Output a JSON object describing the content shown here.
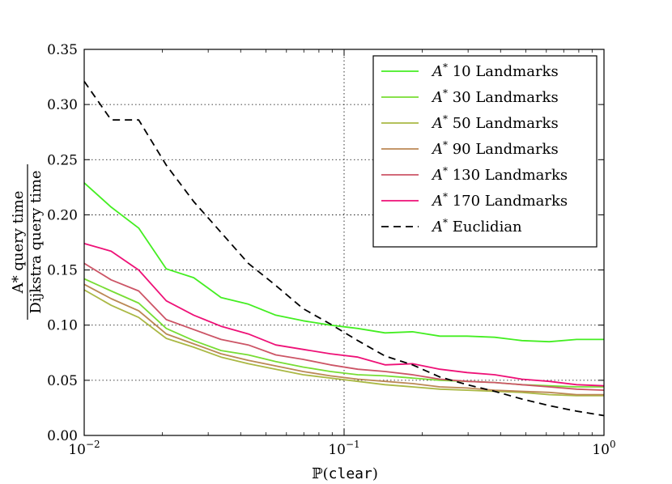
{
  "chart_data": {
    "type": "line",
    "xscale": "log",
    "xlim": [
      0.01,
      1
    ],
    "ylim": [
      0,
      0.35
    ],
    "grid": true,
    "legend_position": "top-right",
    "xlabel": {
      "prefix": "ℙ(",
      "mono": "clear",
      "suffix": ")"
    },
    "ylabel": {
      "numerator": "A* query time",
      "denominator": "Dijkstra query time"
    },
    "y_ticks": [
      "0.00",
      "0.05",
      "0.10",
      "0.15",
      "0.20",
      "0.25",
      "0.30",
      "0.35"
    ],
    "x_ticks": [
      {
        "base": "10",
        "exp": "−2"
      },
      {
        "base": "10",
        "exp": "−1"
      },
      {
        "base": "10",
        "exp": "0"
      }
    ],
    "x": [
      0.01,
      0.0127,
      0.0162,
      0.0207,
      0.0264,
      0.0336,
      0.0428,
      0.0546,
      0.0695,
      0.0886,
      0.1129,
      0.1438,
      0.1833,
      0.2336,
      0.2976,
      0.3793,
      0.4833,
      0.6158,
      0.7848,
      1.0
    ],
    "series": [
      {
        "name": "A* 10 Landmarks",
        "color": "#44ee22",
        "dash": "solid",
        "values": [
          0.229,
          0.207,
          0.188,
          0.151,
          0.143,
          0.125,
          0.119,
          0.109,
          0.104,
          0.1,
          0.097,
          0.093,
          0.094,
          0.09,
          0.09,
          0.089,
          0.086,
          0.085,
          0.087,
          0.087
        ]
      },
      {
        "name": "A* 30 Landmarks",
        "color": "#77dd33",
        "dash": "solid",
        "values": [
          0.142,
          0.131,
          0.12,
          0.097,
          0.086,
          0.077,
          0.073,
          0.067,
          0.062,
          0.058,
          0.055,
          0.054,
          0.052,
          0.05,
          0.049,
          0.048,
          0.046,
          0.045,
          0.044,
          0.044
        ]
      },
      {
        "name": "A* 50 Landmarks",
        "color": "#aab844",
        "dash": "solid",
        "values": [
          0.132,
          0.118,
          0.107,
          0.088,
          0.08,
          0.071,
          0.065,
          0.06,
          0.055,
          0.052,
          0.049,
          0.046,
          0.044,
          0.042,
          0.041,
          0.04,
          0.039,
          0.037,
          0.036,
          0.036
        ]
      },
      {
        "name": "A* 90 Landmarks",
        "color": "#bb8855",
        "dash": "solid",
        "values": [
          0.137,
          0.124,
          0.113,
          0.092,
          0.083,
          0.074,
          0.068,
          0.063,
          0.058,
          0.054,
          0.051,
          0.049,
          0.047,
          0.044,
          0.043,
          0.041,
          0.04,
          0.039,
          0.037,
          0.037
        ]
      },
      {
        "name": "A* 130 Landmarks",
        "color": "#cc5566",
        "dash": "solid",
        "values": [
          0.156,
          0.141,
          0.131,
          0.105,
          0.096,
          0.087,
          0.082,
          0.073,
          0.069,
          0.064,
          0.06,
          0.058,
          0.055,
          0.051,
          0.049,
          0.048,
          0.046,
          0.044,
          0.042,
          0.041
        ]
      },
      {
        "name": "A* 170 Landmarks",
        "color": "#ee1177",
        "dash": "solid",
        "values": [
          0.174,
          0.167,
          0.15,
          0.122,
          0.109,
          0.099,
          0.092,
          0.082,
          0.078,
          0.074,
          0.071,
          0.064,
          0.065,
          0.06,
          0.057,
          0.055,
          0.051,
          0.049,
          0.046,
          0.045
        ]
      },
      {
        "name": "A* Euclidian",
        "color": "#000000",
        "dash": "dashed",
        "values": [
          0.321,
          0.286,
          0.286,
          0.245,
          0.212,
          0.184,
          0.156,
          0.136,
          0.115,
          0.101,
          0.086,
          0.072,
          0.064,
          0.053,
          0.046,
          0.04,
          0.033,
          0.027,
          0.022,
          0.018
        ]
      }
    ]
  }
}
